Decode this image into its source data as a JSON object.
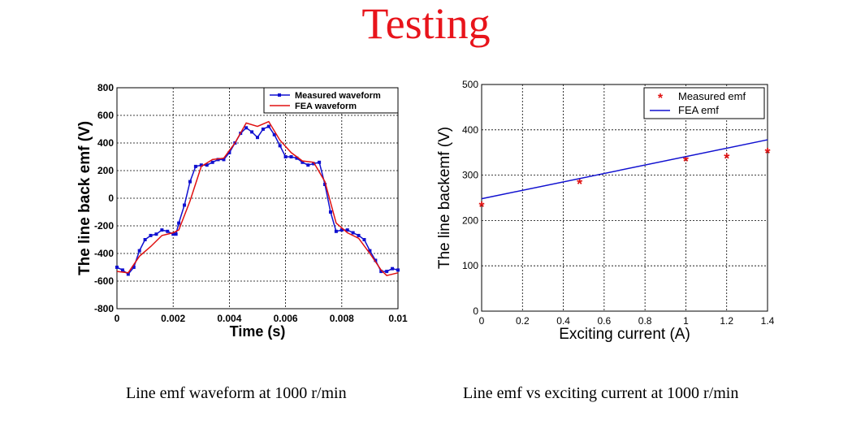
{
  "slide": {
    "title": "Testing",
    "captions": [
      "Line emf waveform at 1000 r/min",
      "Line emf vs exciting current at 1000 r/min"
    ]
  },
  "colors": {
    "title": "#e8141b",
    "blue": "#1010d0",
    "red": "#e01010"
  },
  "chart_data": [
    {
      "type": "line",
      "title": "",
      "xlabel": "Time (s)",
      "ylabel": "The line back emf (V)",
      "xlim": [
        0,
        0.01
      ],
      "ylim": [
        -800,
        800
      ],
      "xticks": [
        0,
        0.002,
        0.004,
        0.006,
        0.008,
        0.01
      ],
      "xtick_labels": [
        "0",
        "0.002",
        "0.004",
        "0.006",
        "0.008",
        "0.01"
      ],
      "yticks": [
        -800,
        -600,
        -400,
        -200,
        0,
        200,
        400,
        600,
        800
      ],
      "ytick_labels": [
        "-800",
        "-600",
        "-400",
        "-200",
        "0",
        "200",
        "400",
        "600",
        "800"
      ],
      "grid": true,
      "legend_position": "top-right",
      "series": [
        {
          "name": "Measured waveform",
          "color": "#1010d0",
          "marker": "square",
          "x": [
            0,
            0.0002,
            0.0004,
            0.0006,
            0.0008,
            0.001,
            0.0012,
            0.0014,
            0.0016,
            0.0018,
            0.002,
            0.0021,
            0.0022,
            0.0024,
            0.0026,
            0.0028,
            0.003,
            0.0032,
            0.0034,
            0.0036,
            0.0038,
            0.004,
            0.0042,
            0.0044,
            0.0046,
            0.0048,
            0.005,
            0.0052,
            0.0054,
            0.0056,
            0.0058,
            0.006,
            0.0062,
            0.0064,
            0.0066,
            0.0068,
            0.007,
            0.0072,
            0.0074,
            0.0076,
            0.0078,
            0.008,
            0.0082,
            0.0084,
            0.0086,
            0.0088,
            0.009,
            0.0092,
            0.0094,
            0.0096,
            0.0098,
            0.01
          ],
          "y": [
            -500,
            -520,
            -550,
            -500,
            -380,
            -300,
            -270,
            -260,
            -230,
            -240,
            -260,
            -260,
            -180,
            -50,
            120,
            230,
            240,
            240,
            260,
            280,
            280,
            330,
            400,
            470,
            510,
            480,
            440,
            500,
            520,
            460,
            380,
            300,
            300,
            290,
            260,
            240,
            250,
            260,
            100,
            -100,
            -240,
            -230,
            -230,
            -250,
            -270,
            -300,
            -380,
            -450,
            -530,
            -530,
            -510,
            -520
          ]
        },
        {
          "name": "FEA waveform",
          "color": "#e01010",
          "marker": "none",
          "x": [
            0,
            0.0004,
            0.0008,
            0.0012,
            0.0016,
            0.002,
            0.0022,
            0.0026,
            0.003,
            0.0034,
            0.0038,
            0.0042,
            0.0046,
            0.005,
            0.0054,
            0.0058,
            0.0062,
            0.0066,
            0.007,
            0.0074,
            0.0078,
            0.0082,
            0.0086,
            0.009,
            0.0094,
            0.0096,
            0.01
          ],
          "y": [
            -530,
            -540,
            -420,
            -350,
            -270,
            -250,
            -230,
            -20,
            230,
            280,
            290,
            400,
            545,
            520,
            555,
            420,
            330,
            270,
            260,
            120,
            -180,
            -250,
            -290,
            -400,
            -520,
            -560,
            -540
          ]
        }
      ]
    },
    {
      "type": "scatter",
      "title": "",
      "xlabel": "Exciting current (A)",
      "ylabel": "The line backemf (V)",
      "xlim": [
        0,
        1.4
      ],
      "ylim": [
        0,
        500
      ],
      "xticks": [
        0,
        0.2,
        0.4,
        0.6,
        0.8,
        1,
        1.2,
        1.4
      ],
      "xtick_labels": [
        "0",
        "0.2",
        "0.4",
        "0.6",
        "0.8",
        "1",
        "1.2",
        "1.4"
      ],
      "yticks": [
        0,
        100,
        200,
        300,
        400,
        500
      ],
      "ytick_labels": [
        "0",
        "100",
        "200",
        "300",
        "400",
        "500"
      ],
      "grid": true,
      "legend_position": "top-right",
      "series": [
        {
          "name": "Measured emf",
          "color": "#e01010",
          "marker": "star",
          "x": [
            0,
            0.48,
            1.0,
            1.2,
            1.4
          ],
          "y": [
            233,
            283,
            333,
            340,
            351
          ]
        },
        {
          "name": "FEA emf",
          "color": "#1010d0",
          "marker": "none",
          "x": [
            0,
            1.4
          ],
          "y": [
            248,
            378
          ]
        }
      ]
    }
  ]
}
